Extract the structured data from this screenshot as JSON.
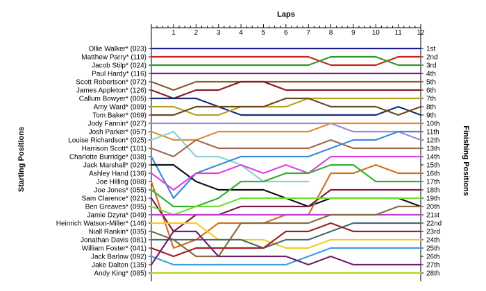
{
  "chart_data": {
    "type": "line",
    "title": "Laps",
    "ylabel_left": "Starting Positions",
    "ylabel_right": "Finishing Positions",
    "laps": [
      1,
      2,
      3,
      4,
      5,
      6,
      7,
      8,
      9,
      10,
      11,
      12
    ],
    "starting_labels": [
      "Ollie Walker* (023)",
      "Matthew Parry* (119)",
      "Jacob Stilp* (024)",
      "Paul Hardy* (116)",
      "Scott Robertson* (072)",
      "James Appleton* (126)",
      "Callum Bowyer* (005)",
      "Amy Ward* (099)",
      "Tom Baker* (069)",
      "Jody Fannin* (027)",
      "Josh Parker* (057)",
      "Louise Richardson* (025)",
      "Harrison Scott* (101)",
      "Charlotte Burridge* (038)",
      "Jack Marshall* (029)",
      "Ashley Hand (136)",
      "Joe Hilling (088)",
      "Joe Jones* (055)",
      "Sam Clarence* (021)",
      "Ben Greaves* (095)",
      "Jamie Dzyra* (049)",
      "Heinrich Watson-Miller* (146)",
      "Niall Rankin* (035)",
      "Jonathan Davis (081)",
      "William Foster* (041)",
      "Jack Barlow (092)",
      "Jake Dalton (135)",
      "Andy King* (085)"
    ],
    "finishing_labels": [
      "1st",
      "2nd",
      "3rd",
      "4th",
      "5th",
      "6th",
      "7th",
      "8th",
      "9th",
      "10th",
      "11th",
      "12th",
      "13th",
      "14th",
      "15th",
      "16th",
      "17th",
      "18th",
      "19th",
      "20th",
      "21st",
      "22nd",
      "23rd",
      "24th",
      "25th",
      "26th",
      "27th",
      "28th"
    ],
    "series": [
      {
        "start": 1,
        "color": "#1a1a8c",
        "positions": [
          1,
          1,
          1,
          1,
          1,
          1,
          1,
          1,
          1,
          1,
          1,
          1
        ]
      },
      {
        "start": 2,
        "color": "#cc2020",
        "positions": [
          2,
          2,
          2,
          2,
          2,
          2,
          2,
          3,
          3,
          3,
          2,
          2
        ]
      },
      {
        "start": 3,
        "color": "#2a9a2a",
        "positions": [
          3,
          3,
          3,
          3,
          3,
          3,
          3,
          2,
          2,
          2,
          3,
          3
        ]
      },
      {
        "start": 4,
        "color": "#7a1a7a",
        "positions": [
          4,
          4,
          4,
          4,
          4,
          4,
          4,
          4,
          4,
          4,
          4,
          4
        ]
      },
      {
        "start": 5,
        "color": "#8a5a2a",
        "positions": [
          6,
          5,
          5,
          5,
          5,
          5,
          5,
          5,
          5,
          5,
          5,
          5
        ]
      },
      {
        "start": 6,
        "color": "#8a1a1a",
        "positions": [
          7,
          6,
          6,
          5,
          5,
          6,
          6,
          6,
          6,
          6,
          6,
          6
        ]
      },
      {
        "start": 7,
        "color": "#1a2a7a",
        "positions": [
          7,
          7,
          8,
          9,
          9,
          9,
          9,
          9,
          9,
          9,
          8,
          9
        ]
      },
      {
        "start": 8,
        "color": "#b8a020",
        "positions": [
          8,
          9,
          9,
          8,
          8,
          8,
          7,
          7,
          7,
          7,
          7,
          7
        ]
      },
      {
        "start": 9,
        "color": "#6a4a1a",
        "positions": [
          9,
          8,
          8,
          8,
          8,
          7,
          7,
          8,
          8,
          8,
          9,
          8
        ]
      },
      {
        "start": 10,
        "color": "#9a8ad8",
        "positions": [
          10,
          10,
          10,
          10,
          10,
          10,
          10,
          10,
          11,
          11,
          11,
          12
        ]
      },
      {
        "start": 11,
        "color": "#e08a30",
        "positions": [
          12,
          12,
          11,
          11,
          11,
          11,
          11,
          10,
          10,
          10,
          10,
          10
        ]
      },
      {
        "start": 12,
        "color": "#8ad0d0",
        "positions": [
          11,
          14,
          14,
          15,
          17,
          17,
          17
        ]
      },
      {
        "start": 13,
        "color": "#a06a4a",
        "positions": [
          14,
          12,
          13,
          13,
          13,
          13,
          13,
          12,
          13,
          13,
          13,
          13
        ]
      },
      {
        "start": 14,
        "color": "#3a8ad8",
        "positions": [
          19,
          16,
          15,
          14,
          14,
          14,
          14,
          13,
          12,
          12,
          11,
          11
        ]
      },
      {
        "start": 15,
        "color": "#101010",
        "positions": [
          15,
          17,
          18,
          18,
          18,
          19,
          20,
          19,
          19,
          19,
          19,
          20
        ]
      },
      {
        "start": 16,
        "color": "#e040e0",
        "positions": [
          18,
          16,
          16,
          15,
          16,
          15,
          16,
          14,
          14,
          14,
          14,
          14
        ]
      },
      {
        "start": 17,
        "color": "#d07020",
        "positions": [
          25,
          24,
          22,
          22,
          22,
          21,
          21,
          16,
          16,
          15,
          16,
          16
        ]
      },
      {
        "start": 18,
        "color": "#30b030",
        "positions": [
          20,
          20,
          19,
          17,
          17,
          16,
          16,
          15,
          15,
          17,
          17,
          17
        ]
      },
      {
        "start": 19,
        "color": "#7a1a4a",
        "positions": [
          23,
          21,
          21,
          20,
          20,
          20,
          20,
          18,
          18,
          18,
          18,
          18
        ]
      },
      {
        "start": 20,
        "color": "#70e030",
        "positions": [
          21,
          20,
          20,
          19,
          19,
          19,
          19,
          19,
          19,
          19,
          19,
          19
        ]
      },
      {
        "start": 21,
        "color": "#c040d0",
        "positions": [
          21,
          21,
          21,
          21,
          21,
          21,
          21,
          21,
          21,
          21,
          21,
          21
        ]
      },
      {
        "start": 22,
        "color": "#f0d020",
        "positions": [
          22,
          22,
          24,
          24,
          24,
          25,
          25,
          24,
          24,
          24,
          24,
          24
        ]
      },
      {
        "start": 23,
        "color": "#8a6a40",
        "positions": [
          24,
          26,
          26,
          22,
          22,
          22,
          22,
          21,
          21,
          21,
          20,
          20
        ]
      },
      {
        "start": 24,
        "color": "#4a6a6a",
        "positions": [
          24,
          24,
          24,
          24,
          25,
          24,
          24,
          23,
          22,
          22,
          22,
          22
        ]
      },
      {
        "start": 25,
        "color": "#a02020",
        "positions": [
          26,
          25,
          25,
          25,
          25,
          23,
          23,
          22,
          23,
          23,
          23,
          23
        ]
      },
      {
        "start": 26,
        "color": "#3aa0e0",
        "positions": [
          27,
          27,
          27,
          27,
          27,
          27,
          26,
          25,
          25,
          25,
          25,
          25
        ]
      },
      {
        "start": 27,
        "color": "#702070",
        "positions": [
          23,
          23,
          26,
          26,
          26,
          26,
          27,
          26,
          27,
          27,
          27,
          27
        ]
      },
      {
        "start": 28,
        "color": "#c0d020",
        "positions": [
          28,
          28,
          28,
          28,
          28,
          28,
          28,
          28,
          28,
          28,
          28,
          28
        ]
      }
    ]
  }
}
